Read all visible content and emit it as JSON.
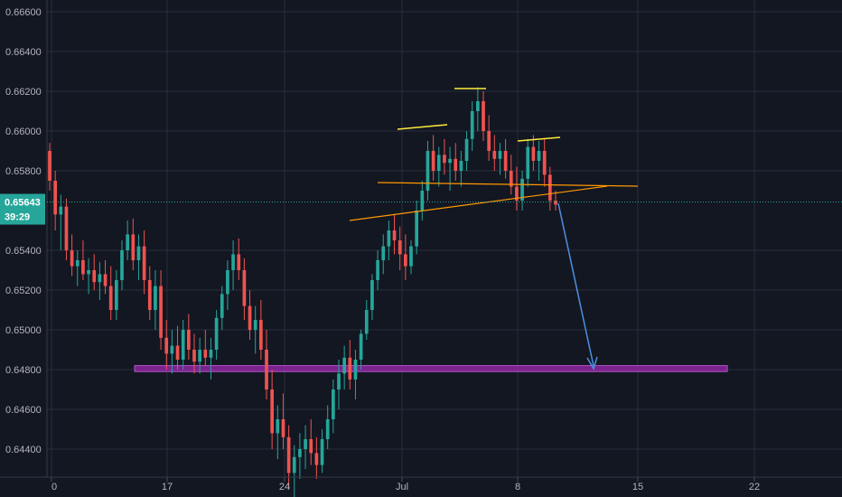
{
  "chart_data": {
    "type": "candlestick",
    "y_ticks": [
      "0.66600",
      "0.66400",
      "0.66200",
      "0.66000",
      "0.65800",
      "0.65400",
      "0.65200",
      "0.65000",
      "0.64800",
      "0.64600",
      "0.64400"
    ],
    "ylim": [
      0.6431,
      0.6666
    ],
    "x_ticks": [
      "0",
      "17",
      "24",
      "Jul",
      "8",
      "15",
      "22"
    ],
    "current_price": {
      "value": 0.65643,
      "label": "0.65643",
      "countdown": "39:29"
    },
    "colors": {
      "background": "#131722",
      "grid": "#2a2e39",
      "bull": "#26a69a",
      "bear": "#ef5350",
      "price_line": "#26a69a",
      "support_zone": "#9c27b0",
      "neckline": "#ff9800",
      "shoulder_marks": "#ffeb3b",
      "projection_arrow": "#4d8fe0"
    },
    "annotations": {
      "support_zone": {
        "price_low": 0.6479,
        "price_high": 0.6482
      },
      "head_and_shoulders": true,
      "projection_target": 0.648
    },
    "candles": [
      [
        0.659,
        0.6594,
        0.657,
        0.6575
      ],
      [
        0.6575,
        0.658,
        0.655,
        0.6558
      ],
      [
        0.6558,
        0.6568,
        0.654,
        0.6562
      ],
      [
        0.6562,
        0.6566,
        0.6535,
        0.654
      ],
      [
        0.654,
        0.6548,
        0.6527,
        0.6532
      ],
      [
        0.6532,
        0.654,
        0.6522,
        0.6535
      ],
      [
        0.6535,
        0.6545,
        0.6525,
        0.6528
      ],
      [
        0.6528,
        0.6536,
        0.6518,
        0.653
      ],
      [
        0.653,
        0.6538,
        0.652,
        0.6524
      ],
      [
        0.6524,
        0.6534,
        0.6515,
        0.6528
      ],
      [
        0.6528,
        0.6535,
        0.6518,
        0.6522
      ],
      [
        0.6522,
        0.6532,
        0.6505,
        0.651
      ],
      [
        0.651,
        0.653,
        0.6505,
        0.6525
      ],
      [
        0.6525,
        0.6545,
        0.652,
        0.654
      ],
      [
        0.654,
        0.6555,
        0.6535,
        0.6548
      ],
      [
        0.6548,
        0.6556,
        0.653,
        0.6535
      ],
      [
        0.6535,
        0.6548,
        0.6525,
        0.6542
      ],
      [
        0.6542,
        0.655,
        0.6518,
        0.6525
      ],
      [
        0.6525,
        0.6532,
        0.6505,
        0.651
      ],
      [
        0.651,
        0.653,
        0.65,
        0.6522
      ],
      [
        0.6522,
        0.653,
        0.649,
        0.6496
      ],
      [
        0.6496,
        0.6505,
        0.648,
        0.6488
      ],
      [
        0.6488,
        0.65,
        0.6478,
        0.6492
      ],
      [
        0.6492,
        0.6502,
        0.648,
        0.6485
      ],
      [
        0.6485,
        0.6505,
        0.648,
        0.65
      ],
      [
        0.65,
        0.6508,
        0.6485,
        0.649
      ],
      [
        0.649,
        0.6498,
        0.6478,
        0.6484
      ],
      [
        0.6484,
        0.6496,
        0.6478,
        0.649
      ],
      [
        0.649,
        0.65,
        0.6482,
        0.6486
      ],
      [
        0.6486,
        0.6496,
        0.6475,
        0.649
      ],
      [
        0.649,
        0.651,
        0.6485,
        0.6506
      ],
      [
        0.6506,
        0.6522,
        0.65,
        0.6518
      ],
      [
        0.6518,
        0.6535,
        0.651,
        0.653
      ],
      [
        0.653,
        0.6545,
        0.652,
        0.6538
      ],
      [
        0.6538,
        0.6546,
        0.6525,
        0.653
      ],
      [
        0.653,
        0.6536,
        0.6505,
        0.6512
      ],
      [
        0.6512,
        0.652,
        0.6495,
        0.65
      ],
      [
        0.65,
        0.6512,
        0.6488,
        0.6505
      ],
      [
        0.6505,
        0.6515,
        0.6485,
        0.649
      ],
      [
        0.649,
        0.65,
        0.6465,
        0.647
      ],
      [
        0.647,
        0.648,
        0.644,
        0.6448
      ],
      [
        0.6448,
        0.6462,
        0.6435,
        0.6455
      ],
      [
        0.6455,
        0.6468,
        0.644,
        0.6446
      ],
      [
        0.6446,
        0.6452,
        0.642,
        0.6428
      ],
      [
        0.6428,
        0.6442,
        0.641,
        0.6436
      ],
      [
        0.6436,
        0.6448,
        0.6425,
        0.644
      ],
      [
        0.644,
        0.6452,
        0.643,
        0.6445
      ],
      [
        0.6445,
        0.6455,
        0.6432,
        0.6438
      ],
      [
        0.6438,
        0.6446,
        0.6425,
        0.6432
      ],
      [
        0.6432,
        0.645,
        0.6428,
        0.6445
      ],
      [
        0.6445,
        0.6462,
        0.644,
        0.6455
      ],
      [
        0.6455,
        0.6475,
        0.6448,
        0.647
      ],
      [
        0.647,
        0.6485,
        0.646,
        0.6478
      ],
      [
        0.6478,
        0.6492,
        0.647,
        0.6486
      ],
      [
        0.6486,
        0.6495,
        0.647,
        0.6475
      ],
      [
        0.6475,
        0.649,
        0.6465,
        0.6485
      ],
      [
        0.6485,
        0.65,
        0.648,
        0.6498
      ],
      [
        0.6498,
        0.6515,
        0.6495,
        0.651
      ],
      [
        0.651,
        0.6528,
        0.6505,
        0.6525
      ],
      [
        0.6525,
        0.654,
        0.652,
        0.6535
      ],
      [
        0.6535,
        0.6548,
        0.6528,
        0.6542
      ],
      [
        0.6542,
        0.6555,
        0.6535,
        0.655
      ],
      [
        0.655,
        0.6558,
        0.6538,
        0.6545
      ],
      [
        0.6545,
        0.6552,
        0.653,
        0.6538
      ],
      [
        0.6538,
        0.6548,
        0.6525,
        0.6532
      ],
      [
        0.6532,
        0.6545,
        0.6528,
        0.6542
      ],
      [
        0.6542,
        0.6565,
        0.6538,
        0.656
      ],
      [
        0.656,
        0.6575,
        0.6555,
        0.657
      ],
      [
        0.657,
        0.6595,
        0.6565,
        0.659
      ],
      [
        0.659,
        0.6598,
        0.6575,
        0.658
      ],
      [
        0.658,
        0.6592,
        0.6572,
        0.6588
      ],
      [
        0.6588,
        0.6596,
        0.6578,
        0.6584
      ],
      [
        0.6584,
        0.6592,
        0.657,
        0.6586
      ],
      [
        0.6586,
        0.6594,
        0.6575,
        0.658
      ],
      [
        0.658,
        0.659,
        0.6572,
        0.6585
      ],
      [
        0.6585,
        0.66,
        0.658,
        0.6596
      ],
      [
        0.6596,
        0.6615,
        0.659,
        0.661
      ],
      [
        0.661,
        0.6622,
        0.66,
        0.6615
      ],
      [
        0.6615,
        0.662,
        0.6595,
        0.66
      ],
      [
        0.66,
        0.6608,
        0.6585,
        0.659
      ],
      [
        0.659,
        0.6598,
        0.658,
        0.6586
      ],
      [
        0.6586,
        0.6594,
        0.6578,
        0.659
      ],
      [
        0.659,
        0.6596,
        0.6576,
        0.658
      ],
      [
        0.658,
        0.6588,
        0.6568,
        0.6572
      ],
      [
        0.6572,
        0.6582,
        0.656,
        0.6565
      ],
      [
        0.6565,
        0.658,
        0.656,
        0.6576
      ],
      [
        0.6576,
        0.6596,
        0.6572,
        0.6592
      ],
      [
        0.6592,
        0.6598,
        0.658,
        0.6585
      ],
      [
        0.6585,
        0.6595,
        0.6575,
        0.659
      ],
      [
        0.659,
        0.6596,
        0.6572,
        0.6578
      ],
      [
        0.6578,
        0.6582,
        0.656,
        0.6565
      ],
      [
        0.6565,
        0.657,
        0.656,
        0.6563
      ]
    ]
  }
}
